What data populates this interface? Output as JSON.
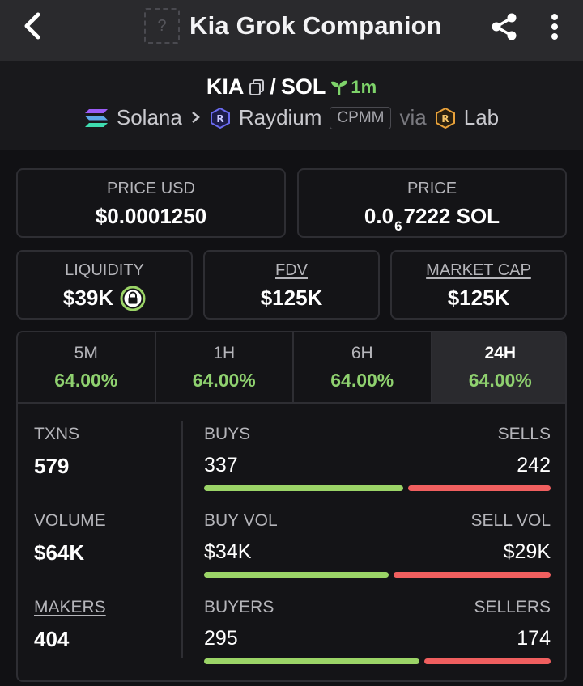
{
  "app": {
    "title": "Kia Grok Companion",
    "token_placeholder": "?"
  },
  "pair": {
    "base": "KIA",
    "separator": "/",
    "quote": "SOL",
    "age": "1m",
    "chain": "Solana",
    "dex": "Raydium",
    "pool_type": "CPMM",
    "via_label": "via",
    "launchpad": "Lab"
  },
  "stats": {
    "price_usd": {
      "label": "PRICE USD",
      "value": "$0.0001250"
    },
    "price": {
      "label": "PRICE",
      "prefix": "0.0",
      "zeros": "6",
      "suffix": "7222 SOL"
    },
    "liquidity": {
      "label": "LIQUIDITY",
      "value": "$39K"
    },
    "fdv": {
      "label": "FDV",
      "value": "$125K"
    },
    "market_cap": {
      "label": "MARKET CAP",
      "value": "$125K"
    }
  },
  "tabs": [
    {
      "label": "5M",
      "change": "64.00%"
    },
    {
      "label": "1H",
      "change": "64.00%"
    },
    {
      "label": "6H",
      "change": "64.00%"
    },
    {
      "label": "24H",
      "change": "64.00%",
      "active": true
    }
  ],
  "txns": {
    "label": "TXNS",
    "value": "579"
  },
  "volume": {
    "label": "VOLUME",
    "value": "$64K"
  },
  "makers": {
    "label": "MAKERS",
    "value": "404"
  },
  "buys_sells": {
    "buy_label": "BUYS",
    "buy_value": "337",
    "sell_label": "SELLS",
    "sell_value": "242",
    "buy_fraction": 0.582
  },
  "vol_split": {
    "buy_label": "BUY VOL",
    "buy_value": "$34K",
    "sell_label": "SELL VOL",
    "sell_value": "$29K",
    "buy_fraction": 0.54
  },
  "buyers_sellers": {
    "buy_label": "BUYERS",
    "buy_value": "295",
    "sell_label": "SELLERS",
    "sell_value": "174",
    "buy_fraction": 0.629
  },
  "colors": {
    "positive": "#8fd16f",
    "buy_bar": "#9bd467",
    "sell_bar": "#f05f5f",
    "age": "#7ed36a"
  }
}
